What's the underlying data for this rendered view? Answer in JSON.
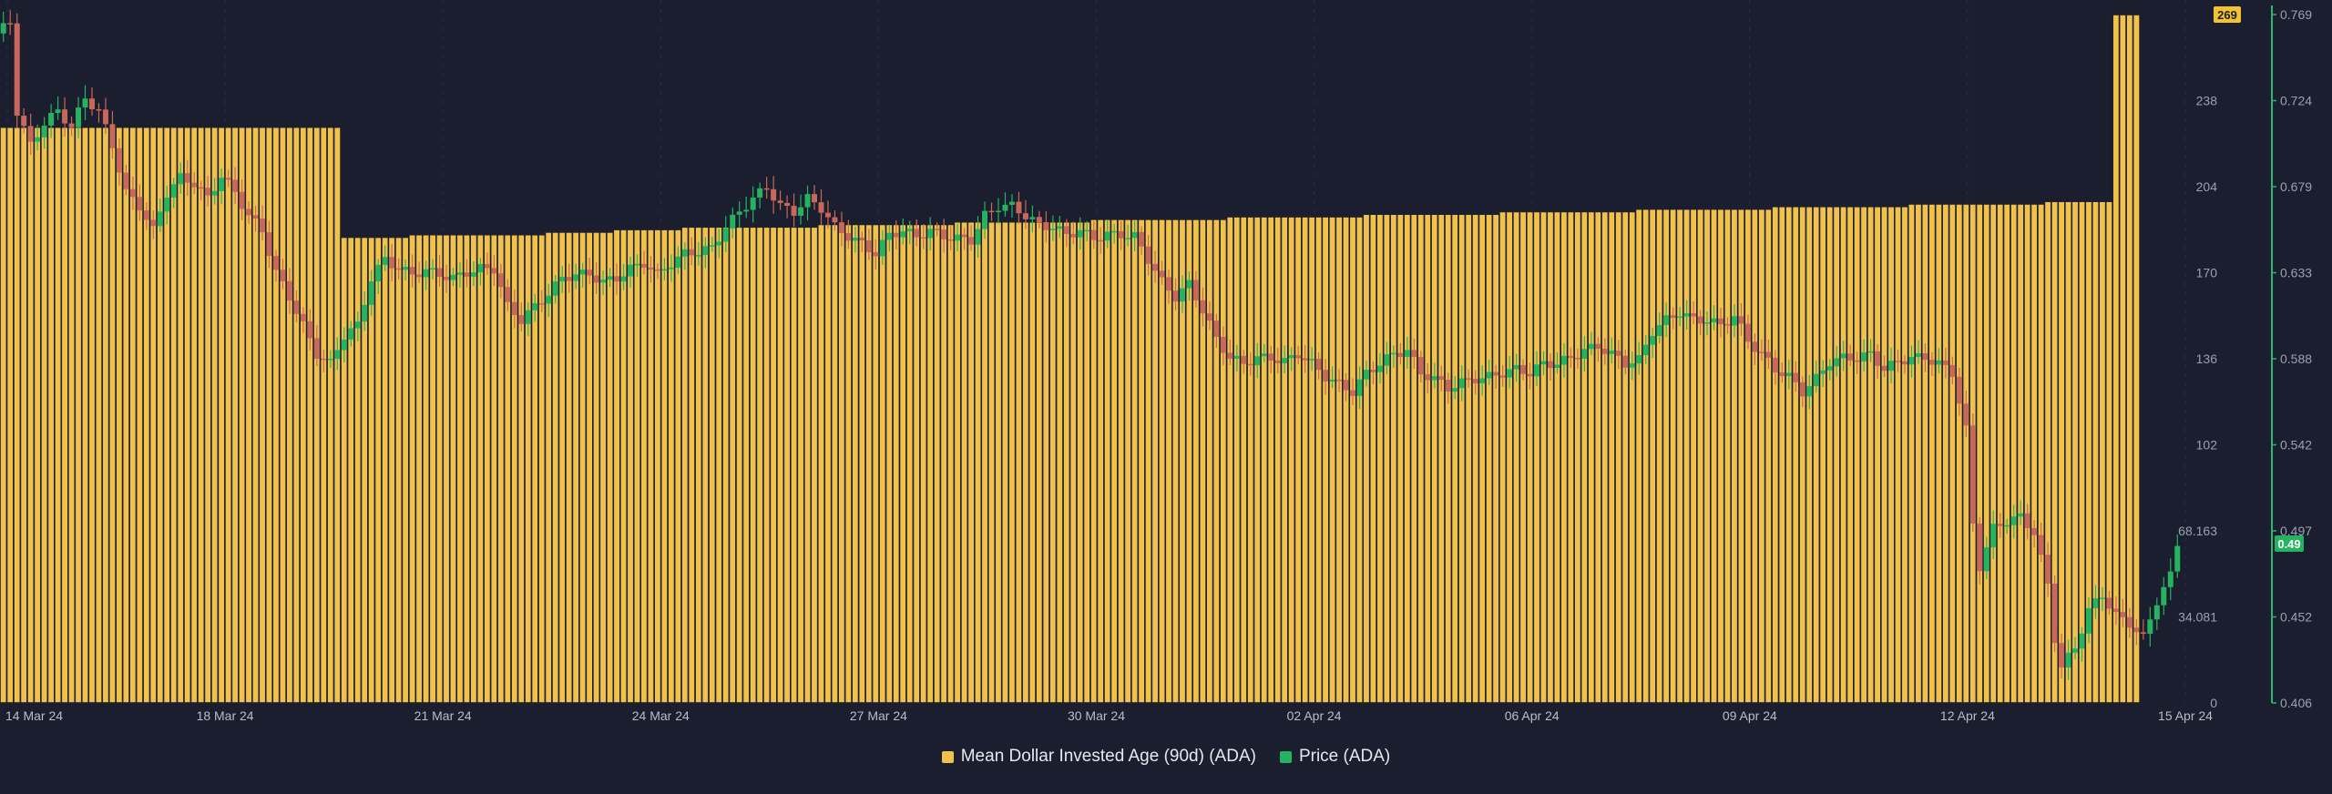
{
  "chart_data": {
    "type": "bar",
    "title": "",
    "x_ticks": [
      "14 Mar 24",
      "18 Mar 24",
      "21 Mar 24",
      "24 Mar 24",
      "27 Mar 24",
      "30 Mar 24",
      "02 Apr 24",
      "06 Apr 24",
      "09 Apr 24",
      "12 Apr 24",
      "15 Apr 24"
    ],
    "left_axis": {
      "ticks": [
        "269",
        "238",
        "204",
        "170",
        "136",
        "102",
        "68.163",
        "34.081",
        "0"
      ],
      "ylim": [
        0,
        269
      ]
    },
    "right_axis": {
      "ticks": [
        "0.769",
        "0.724",
        "0.679",
        "0.633",
        "0.588",
        "0.542",
        "0.497",
        "0.452",
        "0.406"
      ],
      "ylim": [
        0.406,
        0.769
      ]
    },
    "badges": {
      "mdia_current": "269",
      "price_current": "0.49"
    },
    "colors": {
      "background": "#1b1e2e",
      "bar": "#f0c24c",
      "bar_edge": "#1d1f2a",
      "up": "#26b35f",
      "down": "#c8685a",
      "price_axis": "#2eb86a",
      "badge_yellow": "#f2c230"
    },
    "series": [
      {
        "name": "Mean Dollar Invested Age (90d) (ADA)",
        "type": "bar",
        "axis": "left",
        "steps": [
          {
            "from": 0,
            "to": 50,
            "value": 225
          },
          {
            "from": 50,
            "to": 60,
            "value": 182
          },
          {
            "from": 60,
            "to": 80,
            "value": 183
          },
          {
            "from": 80,
            "to": 90,
            "value": 184
          },
          {
            "from": 90,
            "to": 100,
            "value": 185
          },
          {
            "from": 100,
            "to": 120,
            "value": 186
          },
          {
            "from": 120,
            "to": 140,
            "value": 187
          },
          {
            "from": 140,
            "to": 160,
            "value": 188
          },
          {
            "from": 160,
            "to": 180,
            "value": 189
          },
          {
            "from": 180,
            "to": 200,
            "value": 190
          },
          {
            "from": 200,
            "to": 220,
            "value": 191
          },
          {
            "from": 220,
            "to": 240,
            "value": 192
          },
          {
            "from": 240,
            "to": 260,
            "value": 193
          },
          {
            "from": 260,
            "to": 280,
            "value": 194
          },
          {
            "from": 280,
            "to": 300,
            "value": 195
          },
          {
            "from": 300,
            "to": 310,
            "value": 196
          },
          {
            "from": 310,
            "to": 314,
            "value": 269
          }
        ]
      },
      {
        "name": "Price (ADA)",
        "type": "candlestick",
        "axis": "right",
        "keypoints": [
          [
            0,
            0.759
          ],
          [
            2,
            0.765
          ],
          [
            3,
            0.718
          ],
          [
            5,
            0.7
          ],
          [
            7,
            0.712
          ],
          [
            9,
            0.718
          ],
          [
            11,
            0.71
          ],
          [
            13,
            0.725
          ],
          [
            15,
            0.718
          ],
          [
            17,
            0.7
          ],
          [
            19,
            0.675
          ],
          [
            21,
            0.668
          ],
          [
            23,
            0.655
          ],
          [
            25,
            0.675
          ],
          [
            27,
            0.683
          ],
          [
            29,
            0.68
          ],
          [
            31,
            0.672
          ],
          [
            33,
            0.684
          ],
          [
            35,
            0.675
          ],
          [
            37,
            0.663
          ],
          [
            39,
            0.655
          ],
          [
            41,
            0.633
          ],
          [
            43,
            0.62
          ],
          [
            45,
            0.605
          ],
          [
            47,
            0.59
          ],
          [
            49,
            0.585
          ],
          [
            51,
            0.6
          ],
          [
            53,
            0.605
          ],
          [
            55,
            0.63
          ],
          [
            57,
            0.64
          ],
          [
            59,
            0.635
          ],
          [
            61,
            0.632
          ],
          [
            63,
            0.634
          ],
          [
            65,
            0.632
          ],
          [
            67,
            0.63
          ],
          [
            69,
            0.633
          ],
          [
            71,
            0.635
          ],
          [
            73,
            0.635
          ],
          [
            75,
            0.615
          ],
          [
            77,
            0.608
          ],
          [
            79,
            0.615
          ],
          [
            81,
            0.622
          ],
          [
            83,
            0.63
          ],
          [
            85,
            0.632
          ],
          [
            87,
            0.632
          ],
          [
            89,
            0.628
          ],
          [
            91,
            0.63
          ],
          [
            93,
            0.635
          ],
          [
            95,
            0.638
          ],
          [
            97,
            0.632
          ],
          [
            99,
            0.638
          ],
          [
            101,
            0.643
          ],
          [
            103,
            0.644
          ],
          [
            105,
            0.646
          ],
          [
            107,
            0.657
          ],
          [
            109,
            0.665
          ],
          [
            111,
            0.672
          ],
          [
            113,
            0.678
          ],
          [
            115,
            0.668
          ],
          [
            117,
            0.665
          ],
          [
            119,
            0.672
          ],
          [
            121,
            0.667
          ],
          [
            123,
            0.657
          ],
          [
            125,
            0.652
          ],
          [
            127,
            0.648
          ],
          [
            129,
            0.643
          ],
          [
            131,
            0.653
          ],
          [
            133,
            0.655
          ],
          [
            135,
            0.652
          ],
          [
            137,
            0.655
          ],
          [
            139,
            0.652
          ],
          [
            141,
            0.651
          ],
          [
            143,
            0.65
          ],
          [
            145,
            0.663
          ],
          [
            147,
            0.668
          ],
          [
            149,
            0.668
          ],
          [
            151,
            0.663
          ],
          [
            153,
            0.658
          ],
          [
            155,
            0.657
          ],
          [
            157,
            0.653
          ],
          [
            159,
            0.655
          ],
          [
            161,
            0.651
          ],
          [
            163,
            0.653
          ],
          [
            165,
            0.653
          ],
          [
            167,
            0.652
          ],
          [
            169,
            0.64
          ],
          [
            171,
            0.628
          ],
          [
            173,
            0.62
          ],
          [
            175,
            0.627
          ],
          [
            177,
            0.613
          ],
          [
            179,
            0.598
          ],
          [
            181,
            0.588
          ],
          [
            183,
            0.585
          ],
          [
            185,
            0.588
          ],
          [
            187,
            0.588
          ],
          [
            189,
            0.586
          ],
          [
            191,
            0.59
          ],
          [
            193,
            0.585
          ],
          [
            195,
            0.578
          ],
          [
            197,
            0.574
          ],
          [
            199,
            0.57
          ],
          [
            201,
            0.58
          ],
          [
            203,
            0.585
          ],
          [
            205,
            0.59
          ],
          [
            207,
            0.592
          ],
          [
            209,
            0.58
          ],
          [
            211,
            0.577
          ],
          [
            213,
            0.572
          ],
          [
            215,
            0.575
          ],
          [
            217,
            0.577
          ],
          [
            219,
            0.578
          ],
          [
            221,
            0.58
          ],
          [
            223,
            0.582
          ],
          [
            225,
            0.58
          ],
          [
            227,
            0.585
          ],
          [
            229,
            0.585
          ],
          [
            231,
            0.588
          ],
          [
            233,
            0.592
          ],
          [
            235,
            0.594
          ],
          [
            237,
            0.59
          ],
          [
            239,
            0.585
          ],
          [
            241,
            0.587
          ],
          [
            243,
            0.602
          ],
          [
            245,
            0.608
          ],
          [
            247,
            0.612
          ],
          [
            249,
            0.608
          ],
          [
            251,
            0.608
          ],
          [
            253,
            0.605
          ],
          [
            255,
            0.61
          ],
          [
            257,
            0.597
          ],
          [
            259,
            0.59
          ],
          [
            261,
            0.582
          ],
          [
            263,
            0.578
          ],
          [
            265,
            0.57
          ],
          [
            267,
            0.577
          ],
          [
            269,
            0.586
          ],
          [
            271,
            0.588
          ],
          [
            273,
            0.588
          ],
          [
            275,
            0.59
          ],
          [
            277,
            0.582
          ],
          [
            279,
            0.586
          ],
          [
            281,
            0.588
          ],
          [
            283,
            0.588
          ],
          [
            285,
            0.585
          ],
          [
            287,
            0.58
          ],
          [
            289,
            0.55
          ],
          [
            290,
            0.5
          ],
          [
            291,
            0.478
          ],
          [
            293,
            0.498
          ],
          [
            295,
            0.502
          ],
          [
            297,
            0.504
          ],
          [
            299,
            0.496
          ],
          [
            301,
            0.468
          ],
          [
            302,
            0.44
          ],
          [
            303,
            0.425
          ],
          [
            305,
            0.435
          ],
          [
            307,
            0.455
          ],
          [
            309,
            0.463
          ],
          [
            311,
            0.452
          ],
          [
            313,
            0.448
          ],
          [
            315,
            0.44
          ],
          [
            317,
            0.46
          ],
          [
            319,
            0.473
          ],
          [
            320,
            0.49
          ]
        ]
      }
    ]
  },
  "legend": {
    "items": [
      {
        "label": "Mean Dollar Invested Age (90d) (ADA)",
        "color": "#f0c24c"
      },
      {
        "label": "Price (ADA)",
        "color": "#26b35f"
      }
    ]
  }
}
